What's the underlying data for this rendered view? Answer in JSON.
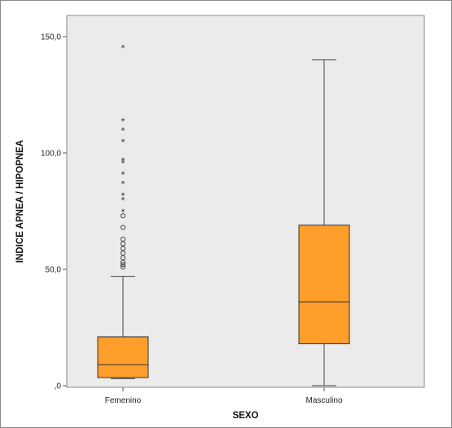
{
  "chart_data": {
    "type": "boxplot",
    "xlabel": "SEXO",
    "ylabel": "INDICE APNEA / HIPOPNEA",
    "ylim": [
      0,
      150
    ],
    "yticks": [
      {
        "value": 0,
        "label": ",0"
      },
      {
        "value": 50,
        "label": "50,0"
      },
      {
        "value": 100,
        "label": "100,0"
      },
      {
        "value": 150,
        "label": "150,0"
      }
    ],
    "categories": [
      "Femenino",
      "Masculino"
    ],
    "boxes": [
      {
        "category": "Femenino",
        "whisker_low": 3,
        "q1": 3.5,
        "median": 9,
        "q3": 21,
        "whisker_high": 47,
        "outliers_circle": [
          51,
          52,
          53,
          55,
          57,
          59,
          61,
          63,
          68,
          73
        ],
        "outliers_star": [
          75,
          80,
          82,
          87,
          91,
          96,
          97,
          105,
          110,
          114,
          145.5
        ]
      },
      {
        "category": "Masculino",
        "whisker_low": 0,
        "q1": 18,
        "median": 36,
        "q3": 69,
        "whisker_high": 140,
        "outliers_circle": [],
        "outliers_star": []
      }
    ],
    "colors": {
      "box_fill": "#ff9e2b",
      "box_stroke": "#333333",
      "plot_background": "#ebebeb",
      "frame": "#8a8a8a"
    },
    "grid": false,
    "legend": "none"
  }
}
